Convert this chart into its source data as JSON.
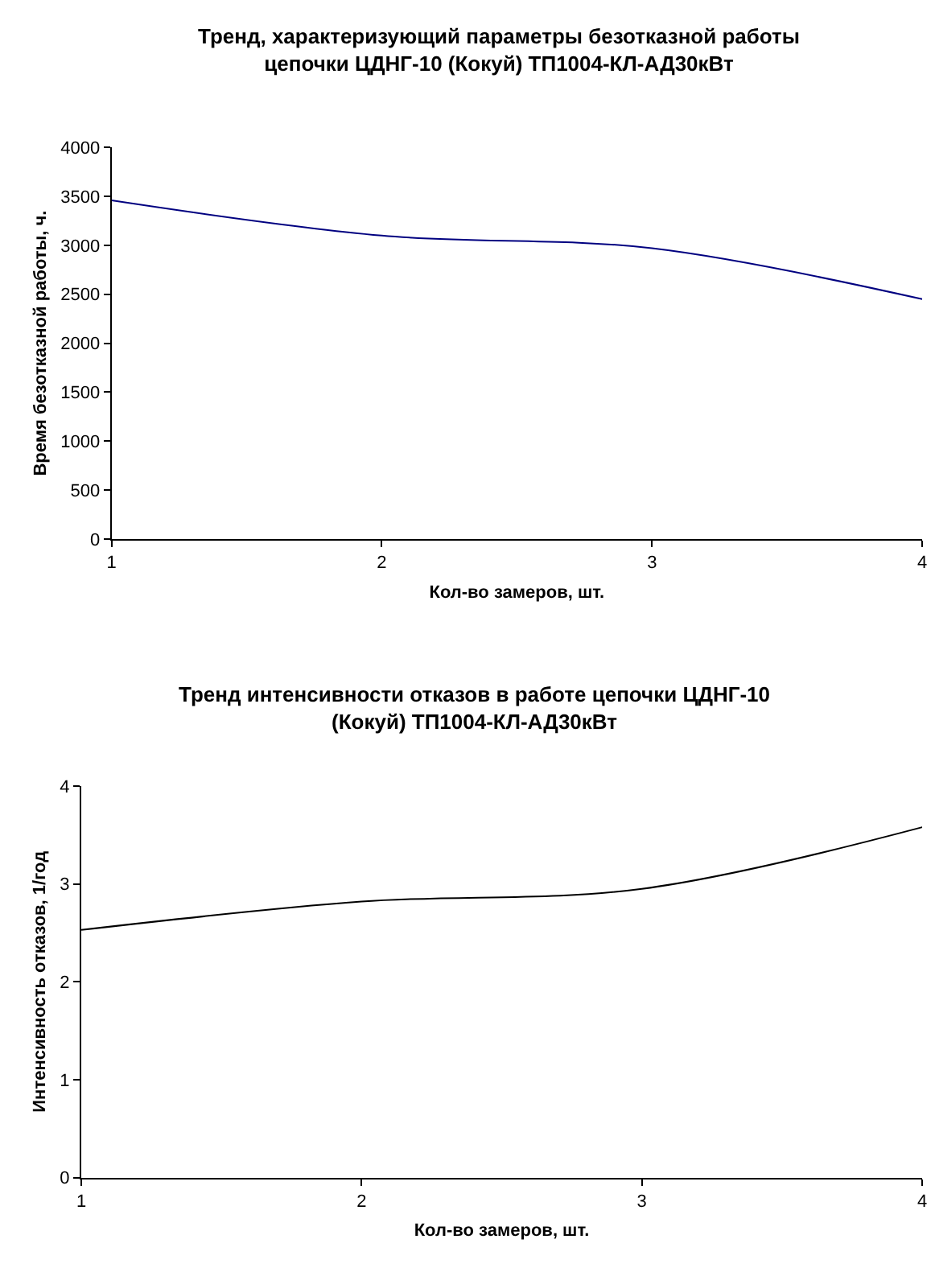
{
  "chart_data": [
    {
      "type": "line",
      "title": "Тренд, характеризующий параметры безотказной работы\nцепочки ЦДНГ-10 (Кокуй) ТП1004-КЛ-АД30кВт",
      "xlabel": "Кол-во замеров, шт.",
      "ylabel": "Время безотказной работы, ч.",
      "x": [
        1,
        2,
        3,
        4
      ],
      "series": [
        {
          "color": "#000080",
          "values": [
            3460,
            3100,
            2970,
            2450
          ]
        }
      ],
      "xlim": [
        1,
        4
      ],
      "xticks": [
        1,
        2,
        3,
        4
      ],
      "ylim": [
        0,
        4000
      ],
      "yticks": [
        0,
        500,
        1000,
        1500,
        2000,
        2500,
        3000,
        3500,
        4000
      ],
      "marker": "none",
      "line_style": "solid"
    },
    {
      "type": "line",
      "title": "Тренд интенсивности отказов в работе цепочки ЦДНГ-10\n(Кокуй) ТП1004-КЛ-АД30кВт",
      "xlabel": "Кол-во замеров, шт.",
      "ylabel": "Интенсивность отказов, 1/год",
      "x": [
        1,
        2,
        3,
        4
      ],
      "series": [
        {
          "color": "#000000",
          "values": [
            2.53,
            2.82,
            2.95,
            3.58
          ]
        }
      ],
      "xlim": [
        1,
        4
      ],
      "xticks": [
        1,
        2,
        3,
        4
      ],
      "ylim": [
        0,
        4
      ],
      "yticks": [
        0,
        1,
        2,
        3,
        4
      ],
      "marker": "none",
      "line_style": "solid"
    }
  ]
}
